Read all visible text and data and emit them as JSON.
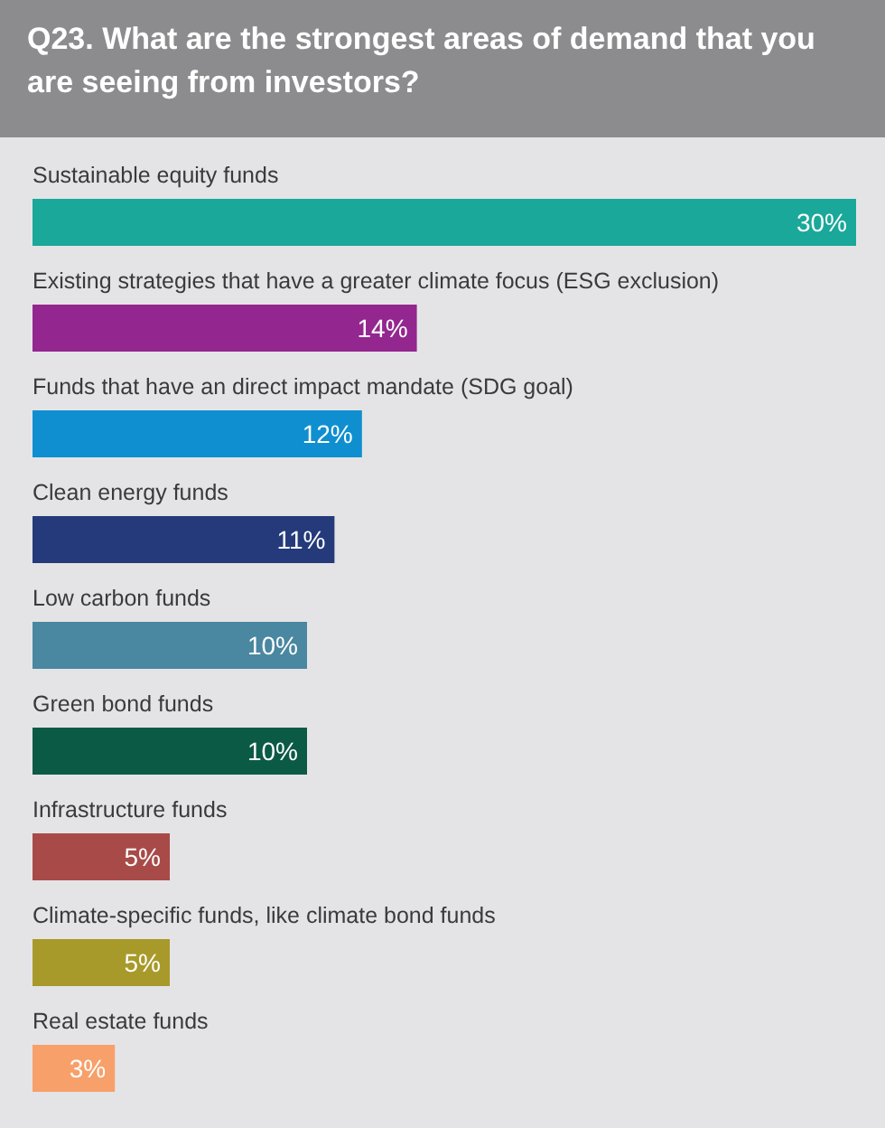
{
  "chart_data": {
    "type": "bar",
    "orientation": "horizontal",
    "title": "Q23. What are the strongest areas of demand that you are seeing from investors?",
    "categories": [
      "Sustainable equity funds",
      "Existing strategies that have a greater climate focus (ESG exclusion)",
      "Funds that have an direct impact mandate (SDG goal)",
      "Clean energy funds",
      "Low carbon funds",
      "Green bond funds",
      "Infrastructure funds",
      "Climate-specific funds, like climate bond funds",
      "Real estate funds"
    ],
    "values": [
      30,
      14,
      12,
      11,
      10,
      10,
      5,
      5,
      3
    ],
    "colors": [
      "#1aa89a",
      "#93278f",
      "#0f8fd0",
      "#253a7a",
      "#4a87a0",
      "#0b5a45",
      "#a84b48",
      "#a89a2a",
      "#f7a06a"
    ],
    "value_labels": [
      "30%",
      "14%",
      "12%",
      "11%",
      "10%",
      "10%",
      "5%",
      "5%",
      "3%"
    ]
  }
}
